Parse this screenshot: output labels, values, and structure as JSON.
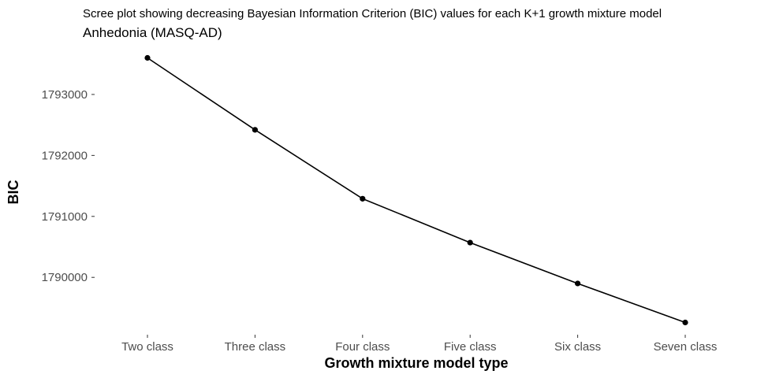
{
  "chart_data": {
    "type": "line",
    "title": "Scree plot showing decreasing Bayesian Information Criterion (BIC) values for each K+1 growth mixture model",
    "subtitle": "Anhedonia (MASQ-AD)",
    "xlabel": "Growth mixture model type",
    "ylabel": "BIC",
    "categories": [
      "Two class",
      "Three class",
      "Four class",
      "Five class",
      "Six class",
      "Seven class"
    ],
    "values": [
      1793600,
      1792420,
      1791290,
      1790570,
      1789900,
      1789260
    ],
    "yticks": [
      1790000,
      1791000,
      1792000,
      1793000
    ],
    "ytick_labels": [
      "1790000",
      "1791000",
      "1792000",
      "1793000"
    ],
    "ylim": [
      1789060,
      1793800
    ],
    "grid": false,
    "legend": "none",
    "line_color": "#000000",
    "point_color": "#000000"
  }
}
